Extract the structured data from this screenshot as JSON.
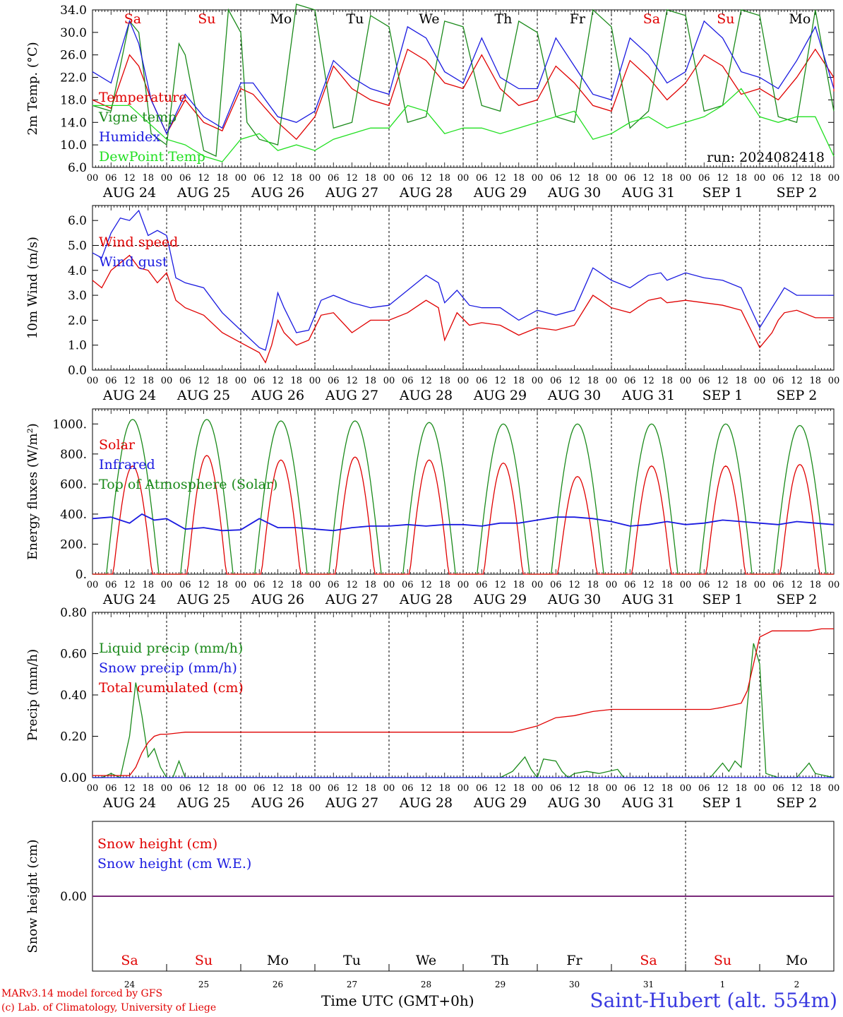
{
  "run_label": "run: 2024082418",
  "footer": {
    "model": "MARv3.14 model forced by GFS",
    "credit": "(c) Lab. of Climatology, University of Liege",
    "time_axis": "Time UTC (GMT+0h)",
    "station": "Saint-Hubert (alt. 554m)"
  },
  "day_names": [
    "Sa",
    "Su",
    "Mo",
    "Tu",
    "We",
    "Th",
    "Fr",
    "Sa",
    "Su",
    "Mo"
  ],
  "day_numbers": [
    "24",
    "25",
    "26",
    "27",
    "28",
    "29",
    "30",
    "31",
    "1",
    "2"
  ],
  "date_labels": [
    "AUG 24",
    "AUG 25",
    "AUG 26",
    "AUG 27",
    "AUG 28",
    "AUG 29",
    "AUG 30",
    "AUG 31",
    "SEP  1",
    "SEP  2"
  ],
  "hour_ticks": [
    "00",
    "06",
    "12",
    "18"
  ],
  "last_tick": "00",
  "colors": {
    "red": "#e00000",
    "green": "#1a8a1a",
    "blue": "#1a1ae0",
    "lightgreen": "#22e022",
    "purple": "#7a2a7a"
  },
  "chart_data": [
    {
      "type": "line",
      "ylabel": "2m Temp. (°C)",
      "ylim": [
        6,
        34
      ],
      "yticks": [
        "6.0",
        "10.0",
        "14.0",
        "18.0",
        "22.0",
        "26.0",
        "30.0",
        "34.0"
      ],
      "x_unit": "hours since Aug 24 00 UTC",
      "series": [
        {
          "name": "Temperature",
          "color": "red",
          "x": [
            0,
            6,
            12,
            15,
            19,
            24,
            30,
            36,
            42,
            48,
            52,
            60,
            66,
            72,
            78,
            84,
            90,
            96,
            102,
            108,
            114,
            120,
            126,
            132,
            138,
            144,
            150,
            156,
            162,
            168,
            174,
            180,
            186,
            192,
            198,
            204,
            210,
            216,
            222,
            228,
            234,
            240,
            240
          ],
          "y": [
            18,
            16.5,
            26,
            24,
            18,
            12,
            18,
            14,
            12.5,
            20,
            19,
            14,
            11,
            15,
            24,
            20,
            18,
            17,
            27,
            25,
            21,
            20,
            26,
            20,
            17,
            18,
            24,
            21,
            17,
            16,
            25,
            22,
            18,
            21,
            26,
            24,
            19,
            20,
            18,
            22,
            27,
            22,
            19.5
          ]
        },
        {
          "name": "Vigne temp",
          "color": "green",
          "x": [
            0,
            6,
            12,
            15,
            19,
            24,
            28,
            30,
            36,
            40,
            44,
            48,
            50,
            54,
            60,
            66,
            72,
            78,
            84,
            90,
            96,
            102,
            108,
            114,
            120,
            126,
            132,
            138,
            144,
            150,
            156,
            162,
            168,
            174,
            180,
            186,
            192,
            198,
            204,
            210,
            216,
            222,
            228,
            234,
            240
          ],
          "y": [
            17,
            16,
            32,
            30,
            12,
            10,
            28,
            26,
            9,
            8,
            34,
            30,
            14,
            11,
            10,
            35,
            34,
            13,
            14,
            33,
            31,
            14,
            15,
            32,
            31,
            17,
            16,
            32,
            30,
            15,
            14,
            34,
            31,
            13,
            16,
            34,
            33,
            16,
            17,
            34,
            33,
            15,
            14,
            34,
            16
          ]
        },
        {
          "name": "Humidex",
          "color": "blue",
          "x": [
            0,
            6,
            12,
            15,
            19,
            24,
            30,
            36,
            42,
            48,
            52,
            60,
            66,
            72,
            78,
            84,
            90,
            96,
            102,
            108,
            114,
            120,
            126,
            132,
            138,
            144,
            150,
            156,
            162,
            168,
            174,
            180,
            186,
            192,
            198,
            204,
            210,
            216,
            222,
            228,
            234,
            240
          ],
          "y": [
            23,
            21,
            32,
            28,
            18,
            12,
            19,
            15,
            13,
            21,
            21,
            15,
            14,
            16,
            25,
            22,
            20,
            19,
            31,
            29,
            23,
            21,
            29,
            22,
            20,
            20,
            29,
            24,
            19,
            18,
            29,
            26,
            21,
            23,
            32,
            29,
            23,
            22,
            20,
            25,
            31,
            20
          ]
        },
        {
          "name": "DewPoint Temp",
          "color": "lightgreen",
          "x": [
            0,
            6,
            12,
            18,
            24,
            30,
            36,
            42,
            48,
            54,
            60,
            66,
            72,
            78,
            84,
            90,
            96,
            102,
            108,
            114,
            120,
            126,
            132,
            138,
            144,
            150,
            156,
            162,
            168,
            174,
            180,
            186,
            192,
            198,
            204,
            210,
            216,
            222,
            228,
            234,
            240
          ],
          "y": [
            17,
            17,
            17,
            14,
            11,
            10,
            8,
            7,
            11,
            12,
            9,
            10,
            9,
            11,
            12,
            13,
            13,
            17,
            16,
            12,
            13,
            13,
            12,
            13,
            14,
            15,
            16,
            11,
            12,
            14,
            15,
            13,
            14,
            15,
            17,
            20,
            15,
            14,
            15,
            15,
            8
          ]
        }
      ]
    },
    {
      "type": "line",
      "ylabel": "10m Wind (m/s)",
      "ylim": [
        0,
        6.6
      ],
      "yticks": [
        "0.0",
        "1.0",
        "2.0",
        "3.0",
        "4.0",
        "5.0",
        "6.0"
      ],
      "reference_line": 5.0,
      "series": [
        {
          "name": "Wind speed",
          "color": "red",
          "x": [
            0,
            3,
            6,
            9,
            12,
            15,
            18,
            21,
            24,
            27,
            30,
            36,
            42,
            48,
            54,
            56,
            58,
            60,
            62,
            66,
            70,
            74,
            78,
            84,
            90,
            96,
            102,
            108,
            112,
            114,
            118,
            122,
            126,
            132,
            138,
            144,
            150,
            156,
            162,
            168,
            174,
            180,
            184,
            186,
            192,
            198,
            204,
            210,
            216,
            220,
            222,
            224,
            228,
            234,
            240
          ],
          "y": [
            3.6,
            3.3,
            4.0,
            4.3,
            4.6,
            4.1,
            4.0,
            3.5,
            3.9,
            2.8,
            2.5,
            2.2,
            1.5,
            1.1,
            0.7,
            0.3,
            1.0,
            2.0,
            1.5,
            1.0,
            1.2,
            2.2,
            2.3,
            1.5,
            2.0,
            2.0,
            2.3,
            2.8,
            2.5,
            1.2,
            2.3,
            1.8,
            1.9,
            1.8,
            1.4,
            1.7,
            1.6,
            1.8,
            3.0,
            2.5,
            2.3,
            2.8,
            2.9,
            2.7,
            2.8,
            2.7,
            2.6,
            2.4,
            0.9,
            1.5,
            2.0,
            2.3,
            2.4,
            2.1,
            2.1
          ]
        },
        {
          "name": "Wind gust",
          "color": "blue",
          "x": [
            0,
            3,
            6,
            9,
            12,
            15,
            18,
            21,
            24,
            27,
            30,
            36,
            42,
            48,
            54,
            56,
            58,
            60,
            62,
            66,
            70,
            74,
            78,
            84,
            90,
            96,
            102,
            108,
            112,
            114,
            118,
            122,
            126,
            132,
            138,
            144,
            150,
            156,
            162,
            168,
            174,
            180,
            184,
            186,
            192,
            198,
            204,
            210,
            216,
            220,
            222,
            224,
            228,
            234,
            240
          ],
          "y": [
            4.7,
            4.5,
            5.5,
            6.1,
            6.0,
            6.4,
            5.4,
            5.6,
            5.4,
            3.7,
            3.5,
            3.3,
            2.3,
            1.6,
            0.9,
            0.8,
            1.8,
            3.1,
            2.5,
            1.5,
            1.6,
            2.8,
            3.0,
            2.7,
            2.5,
            2.6,
            3.2,
            3.8,
            3.5,
            2.7,
            3.2,
            2.6,
            2.5,
            2.5,
            2.0,
            2.4,
            2.2,
            2.4,
            4.1,
            3.6,
            3.3,
            3.8,
            3.9,
            3.6,
            3.9,
            3.7,
            3.6,
            3.3,
            1.7,
            2.5,
            2.9,
            3.3,
            3.0,
            3.0,
            3.0
          ]
        }
      ]
    },
    {
      "type": "line",
      "ylabel": "Energy fluxes (W/m²)",
      "ylim": [
        0,
        1100
      ],
      "yticks": [
        "0.",
        "200.",
        "400.",
        "600.",
        "800.",
        "1000."
      ],
      "series": [
        {
          "name": "Solar",
          "color": "red",
          "peaks": [
            720,
            790,
            760,
            780,
            760,
            740,
            650,
            720,
            720,
            730
          ]
        },
        {
          "name": "Infrared",
          "color": "blue",
          "x": [
            0,
            6,
            12,
            16,
            20,
            24,
            30,
            36,
            42,
            48,
            54,
            60,
            66,
            72,
            78,
            84,
            90,
            96,
            102,
            108,
            114,
            120,
            126,
            132,
            138,
            144,
            150,
            156,
            162,
            168,
            174,
            180,
            186,
            192,
            198,
            204,
            210,
            216,
            222,
            228,
            234,
            240
          ],
          "y": [
            370,
            380,
            340,
            400,
            360,
            370,
            300,
            310,
            290,
            295,
            370,
            310,
            310,
            300,
            290,
            310,
            320,
            320,
            330,
            320,
            330,
            330,
            320,
            340,
            340,
            360,
            380,
            380,
            370,
            350,
            320,
            330,
            350,
            330,
            340,
            360,
            350,
            340,
            330,
            350,
            340,
            330
          ]
        },
        {
          "name": "Top of Atmosphere (Solar)",
          "color": "green",
          "peaks": [
            1030,
            1030,
            1020,
            1020,
            1010,
            1000,
            1000,
            1000,
            1000,
            990
          ]
        }
      ]
    },
    {
      "type": "line",
      "ylabel": "Precip (mm/h)",
      "ylim": [
        0,
        0.8
      ],
      "yticks": [
        "0.00",
        "0.20",
        "0.40",
        "0.60",
        "0.80"
      ],
      "series": [
        {
          "name": "Liquid precip (mm/h)",
          "color": "green",
          "x": [
            0,
            3,
            6,
            9,
            12,
            14,
            16,
            18,
            20,
            22,
            24,
            26,
            28,
            30,
            34,
            100,
            132,
            136,
            140,
            142,
            144,
            146,
            150,
            152,
            154,
            156,
            160,
            164,
            170,
            172,
            176,
            200,
            204,
            206,
            208,
            210,
            212,
            214,
            216,
            218,
            222,
            228,
            232,
            234,
            240
          ],
          "y": [
            0,
            0,
            0.02,
            0,
            0.2,
            0.46,
            0.3,
            0.1,
            0.14,
            0.05,
            0,
            0,
            0.08,
            0,
            0,
            0,
            0,
            0.03,
            0.1,
            0.04,
            0,
            0.09,
            0.08,
            0.03,
            0,
            0.02,
            0.03,
            0.02,
            0.04,
            0,
            0,
            0,
            0.07,
            0.03,
            0.08,
            0.05,
            0.35,
            0.65,
            0.55,
            0.02,
            0,
            0,
            0.07,
            0.02,
            0
          ]
        },
        {
          "name": "Snow precip (mm/h)",
          "color": "blue",
          "x": [
            0,
            240
          ],
          "y": [
            0,
            0
          ]
        },
        {
          "name": "Total cumulated (cm)",
          "color": "red",
          "x": [
            0,
            10,
            12,
            14,
            16,
            18,
            20,
            22,
            24,
            30,
            36,
            60,
            120,
            136,
            144,
            150,
            156,
            162,
            168,
            200,
            204,
            210,
            212,
            214,
            216,
            220,
            228,
            232,
            236,
            240
          ],
          "y": [
            0.01,
            0.01,
            0.01,
            0.05,
            0.12,
            0.17,
            0.2,
            0.21,
            0.21,
            0.22,
            0.22,
            0.22,
            0.22,
            0.22,
            0.25,
            0.29,
            0.3,
            0.32,
            0.33,
            0.33,
            0.34,
            0.36,
            0.42,
            0.55,
            0.68,
            0.71,
            0.71,
            0.71,
            0.72,
            0.72
          ]
        }
      ]
    },
    {
      "type": "line",
      "ylabel": "Snow height (cm)",
      "yticks": [
        "0.00"
      ],
      "series": [
        {
          "name": "Snow height (cm)",
          "color": "red",
          "x": [
            0,
            240
          ],
          "y": [
            0,
            0
          ]
        },
        {
          "name": "Snow height (cm W.E.)",
          "color": "blue",
          "x": [
            0,
            240
          ],
          "y": [
            0,
            0
          ]
        }
      ]
    }
  ]
}
